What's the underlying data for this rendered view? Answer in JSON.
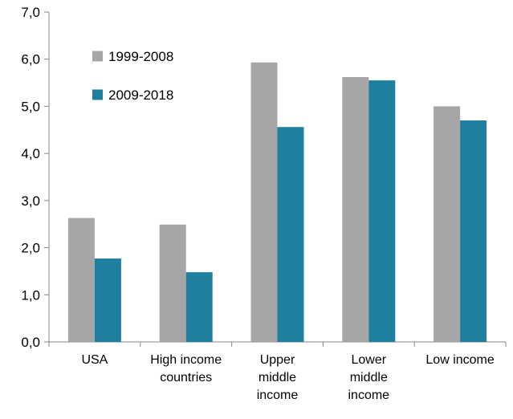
{
  "chart_data": {
    "type": "bar",
    "categories": [
      [
        "USA"
      ],
      [
        "High income",
        "countries"
      ],
      [
        "Upper",
        "middle",
        "income"
      ],
      [
        "Lower",
        "middle",
        "income"
      ],
      [
        "Low income"
      ]
    ],
    "series": [
      {
        "name": "1999-2008",
        "color": "#a6a6a6",
        "values": [
          2.63,
          2.49,
          5.93,
          5.62,
          5.0
        ]
      },
      {
        "name": "2009-2018",
        "color": "#1f7f9e",
        "values": [
          1.77,
          1.48,
          4.56,
          5.55,
          4.7
        ]
      }
    ],
    "y_ticks": [
      "0,0",
      "1,0",
      "2,0",
      "3,0",
      "4,0",
      "5,0",
      "6,0",
      "7,0"
    ],
    "ylim": [
      0,
      7
    ],
    "grid": false,
    "legend_position": "top-left",
    "title": "",
    "xlabel": "",
    "ylabel": ""
  }
}
